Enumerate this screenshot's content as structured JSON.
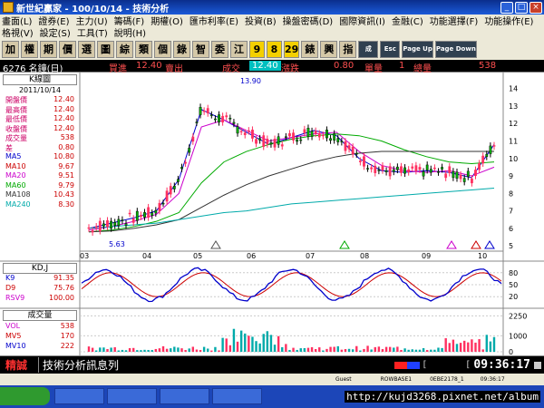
{
  "window": {
    "title": "新世紀贏家 - 100/10/14 - 技術分析"
  },
  "menu": {
    "row1": [
      "畫面(L)",
      "證券(E)",
      "主力(U)",
      "籌碼(F)",
      "期權(O)",
      "匯市利率(E)",
      "投資(B)",
      "操盤密碼(D)",
      "國際資訊(I)",
      "金融(C)",
      "功能選擇(F)",
      "功能操作(E)"
    ],
    "row2": [
      "格視(V)",
      "設定(S)",
      "工具(T)",
      "說明(H)"
    ]
  },
  "toolbar": {
    "buttons": [
      "加",
      "權",
      "期",
      "價",
      "選",
      "圖",
      "綜",
      "類",
      "個",
      "錄",
      "智",
      "委",
      "江"
    ],
    "numbers": [
      "9",
      "8",
      "29"
    ],
    "buttons2": [
      "錶",
      "興",
      "指"
    ],
    "extra": [
      "成",
      "Esc",
      "Page Up",
      "Page Down"
    ]
  },
  "info": {
    "code": "6276 名鐘(日)",
    "bid_label": "買進",
    "bid": "12.40",
    "ask_label": "賣出",
    "trade_label": "成交",
    "trade": "12.40",
    "change_label": "漲跌",
    "change": "0.80",
    "unit_label": "單量",
    "unit": "1",
    "vol_label": "總量",
    "vol": "538"
  },
  "left_panel": {
    "title": "K線圖",
    "date": "2011/10/14",
    "rows": [
      {
        "label": "開盤價",
        "value": "12.40",
        "color": "#cc0066"
      },
      {
        "label": "最高價",
        "value": "12.40",
        "color": "#cc0066"
      },
      {
        "label": "最低價",
        "value": "12.40",
        "color": "#cc0066"
      },
      {
        "label": "收盤價",
        "value": "12.40",
        "color": "#cc0066"
      },
      {
        "label": "成交量",
        "value": "538",
        "color": "#cc0066"
      },
      {
        "label": "差",
        "value": "0.80",
        "color": "#cc0066"
      },
      {
        "label": "MA5",
        "value": "10.80",
        "color": "#0000cc"
      },
      {
        "label": "MA10",
        "value": "9.67",
        "color": "#cc0000"
      },
      {
        "label": "MA20",
        "value": "9.51",
        "color": "#cc00cc"
      },
      {
        "label": "MA60",
        "value": "9.79",
        "color": "#00aa00"
      },
      {
        "label": "MA108",
        "value": "10.43",
        "color": "#333333"
      },
      {
        "label": "MA240",
        "value": "8.30",
        "color": "#00aaaa"
      }
    ],
    "kd_title": "KD,J",
    "kd_rows": [
      {
        "label": "K9",
        "value": "91.35",
        "color": "#0000cc"
      },
      {
        "label": "D9",
        "value": "75.76",
        "color": "#cc0000"
      },
      {
        "label": "RSV9",
        "value": "100.00",
        "color": "#cc00cc"
      }
    ],
    "vol_title": "成交量",
    "vol_rows": [
      {
        "label": "VOL",
        "value": "538",
        "color": "#cc00cc"
      },
      {
        "label": "MV5",
        "value": "170",
        "color": "#cc0000"
      },
      {
        "label": "MV10",
        "value": "222",
        "color": "#0000cc"
      }
    ]
  },
  "chart_data": {
    "type": "line",
    "x_labels": [
      "03",
      "04",
      "05",
      "06",
      "07",
      "08",
      "09",
      "10"
    ],
    "price_axis": [
      "14",
      "13",
      "12",
      "11",
      "10",
      "9",
      "8",
      "7",
      "6",
      "5"
    ],
    "high_label": "13.90",
    "low_label": "5.63",
    "kd_axis": [
      "80",
      "50",
      "20"
    ],
    "vol_axis": [
      "2250",
      "1000",
      "0"
    ],
    "series": [
      {
        "name": "MA5",
        "color": "#0000cc",
        "values": [
          6.0,
          6.3,
          6.6,
          7.0,
          8.8,
          12.8,
          12.2,
          11.5,
          10.8,
          11.2,
          11.6,
          11.3,
          10.0,
          9.3,
          9.2,
          9.3,
          9.2,
          8.9,
          10.8
        ]
      },
      {
        "name": "MA20",
        "color": "#cc00cc",
        "values": [
          5.9,
          6.1,
          6.4,
          6.8,
          8.0,
          11.8,
          12.2,
          11.6,
          11.0,
          11.2,
          11.4,
          11.5,
          10.4,
          9.6,
          9.3,
          9.2,
          9.3,
          9.0,
          9.5
        ]
      },
      {
        "name": "MA60",
        "color": "#00aa00",
        "values": [
          5.8,
          5.9,
          6.1,
          6.4,
          6.9,
          8.6,
          9.8,
          10.4,
          10.8,
          11.1,
          11.3,
          11.4,
          11.3,
          11.0,
          10.5,
          10.1,
          9.8,
          9.7,
          9.8
        ]
      },
      {
        "name": "MA108",
        "color": "#333333",
        "values": [
          5.8,
          5.85,
          6.0,
          6.2,
          6.5,
          7.2,
          7.9,
          8.5,
          9.0,
          9.4,
          9.8,
          10.1,
          10.3,
          10.4,
          10.4,
          10.4,
          10.4,
          10.4,
          10.4
        ]
      },
      {
        "name": "MA240",
        "color": "#00aaaa",
        "values": [
          6.0,
          6.1,
          6.2,
          6.3,
          6.5,
          6.7,
          6.9,
          7.0,
          7.2,
          7.4,
          7.5,
          7.6,
          7.7,
          7.8,
          7.9,
          8.0,
          8.1,
          8.2,
          8.3
        ]
      }
    ]
  },
  "status": {
    "brand": "精誠",
    "message": "技術分析訊息列",
    "time": "09:36:17"
  },
  "taskbar": {
    "cells": [
      "Guest",
      "ROWBASE1",
      "0EBE2178_1",
      "09:36:17"
    ],
    "url": "http://kujd3268.pixnet.net/album"
  }
}
